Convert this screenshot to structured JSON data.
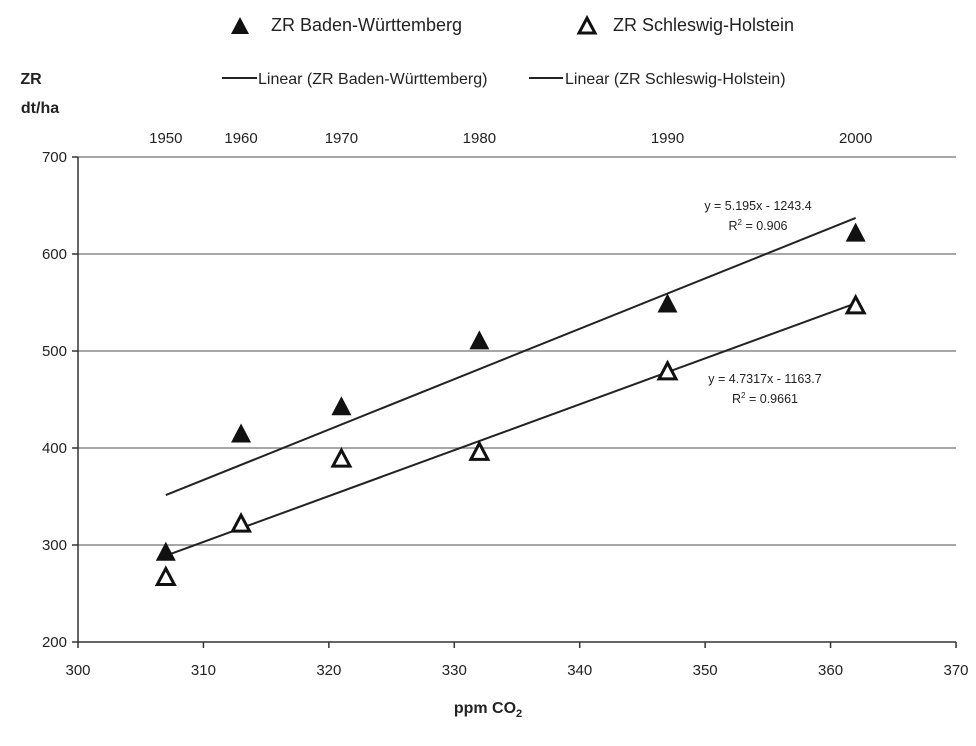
{
  "chart_data": {
    "type": "scatter",
    "x": [
      307,
      313,
      321,
      332,
      347,
      362
    ],
    "xlim": [
      300,
      370
    ],
    "ylim": [
      200,
      700
    ],
    "x_ticks": [
      "300",
      "310",
      "320",
      "330",
      "340",
      "350",
      "360",
      "370"
    ],
    "y_ticks": [
      "200",
      "300",
      "400",
      "500",
      "600",
      "700"
    ],
    "top_axis": [
      {
        "x": 307,
        "label": "1950"
      },
      {
        "x": 313,
        "label": "1960"
      },
      {
        "x": 321,
        "label": "1970"
      },
      {
        "x": 332,
        "label": "1980"
      },
      {
        "x": 347,
        "label": "1990"
      },
      {
        "x": 362,
        "label": "2000"
      }
    ],
    "xlabel_main": "ppm CO",
    "xlabel_sub": "2",
    "ylabel_line1": "ZR",
    "ylabel_line2": "dt/ha",
    "grid": "horizontal",
    "series": [
      {
        "name": "ZR Baden-Württemberg",
        "marker": "filled-triangle",
        "values": [
          293,
          415,
          443,
          511,
          549,
          622
        ],
        "trend_name": "Linear (ZR Baden-Württemberg)",
        "slope": 5.195,
        "intercept": -1243.4,
        "equation": "y = 5.195x - 1243.4",
        "r2_main": "R",
        "r2_sup": "2",
        "r2_value": " = 0.906"
      },
      {
        "name": "ZR Schleswig-Holstein",
        "marker": "open-triangle",
        "values": [
          267,
          322,
          389,
          396,
          479,
          547
        ],
        "trend_name": "Linear (ZR Schleswig-Holstein)",
        "slope": 4.7317,
        "intercept": -1163.7,
        "equation": "y = 4.7317x - 1163.7",
        "r2_main": "R",
        "r2_sup": "2",
        "r2_value": " = 0.9661"
      }
    ],
    "legend_placement": "top",
    "colors": {
      "marker": "#111111",
      "trend": "#222222",
      "grid": "#8a8a8a",
      "axis": "#333333"
    }
  }
}
